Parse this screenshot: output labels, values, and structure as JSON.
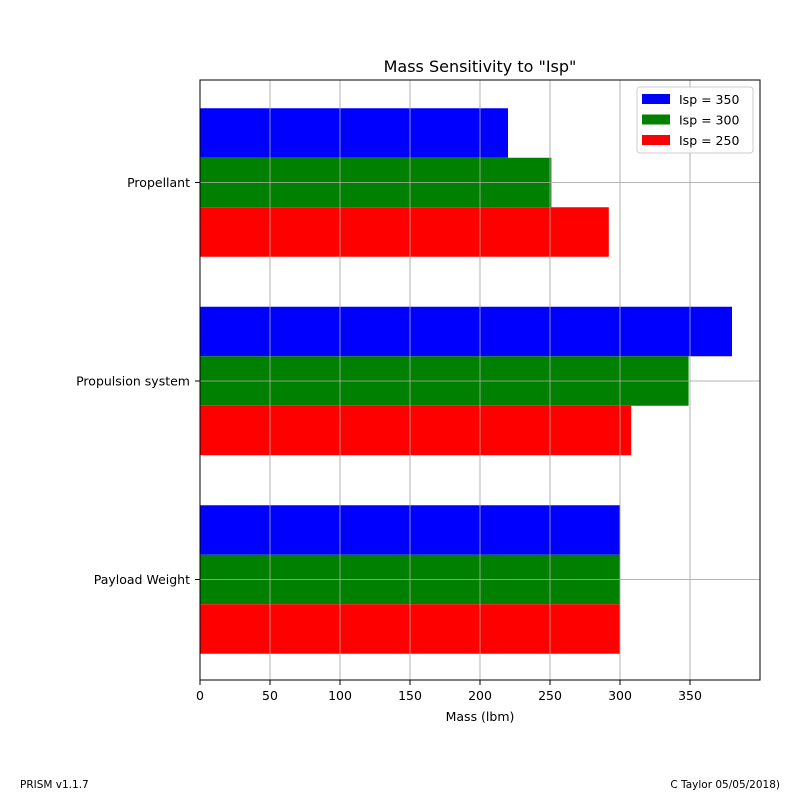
{
  "chart_data": {
    "type": "bar",
    "orientation": "horizontal",
    "title": "Mass Sensitivity to \"Isp\"",
    "xlabel": "Mass (lbm)",
    "ylabel": "",
    "categories": [
      "Propellant",
      "Propulsion system",
      "Payload Weight"
    ],
    "series": [
      {
        "name": "Isp = 350",
        "color": "#0000ff",
        "values": [
          220,
          380,
          300
        ]
      },
      {
        "name": "Isp = 300",
        "color": "#008000",
        "values": [
          251,
          349,
          300
        ]
      },
      {
        "name": "Isp = 250",
        "color": "#ff0000",
        "values": [
          292,
          308,
          300
        ]
      }
    ],
    "xlim": [
      0,
      400
    ],
    "xticks": [
      0,
      50,
      100,
      150,
      200,
      250,
      300,
      350
    ],
    "xtick_labels": [
      "0",
      "50",
      "100",
      "150",
      "200",
      "250",
      "300",
      "350"
    ],
    "grid": true,
    "legend_position": "top-right"
  },
  "footer": {
    "left_text": "PRISM v1.1.7",
    "right_text": "C Taylor 05/05/2018)"
  }
}
